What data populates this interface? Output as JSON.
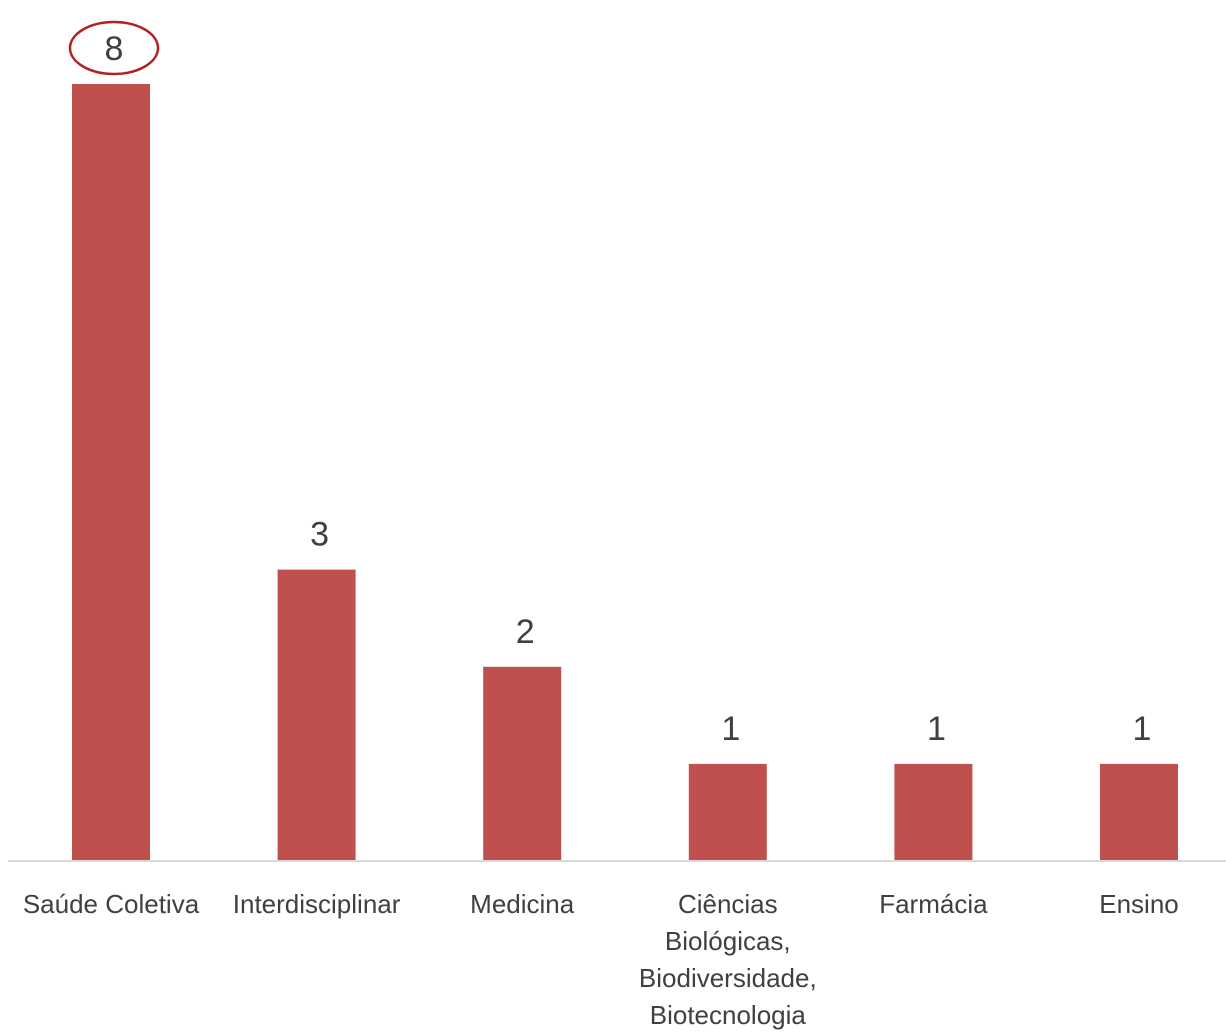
{
  "chart_data": {
    "type": "bar",
    "title": "",
    "xlabel": "",
    "ylabel": "",
    "categories": [
      "Saúde Coletiva",
      "Interdisciplinar",
      "Medicina",
      "Ciências Biológicas, Biodiversidade, Biotecnologia",
      "Farmácia",
      "Ensino"
    ],
    "category_lines": [
      [
        "Saúde Coletiva"
      ],
      [
        "Interdisciplinar"
      ],
      [
        "Medicina"
      ],
      [
        "Ciências",
        "Biológicas,",
        "Biodiversidade,",
        "Biotecnologia"
      ],
      [
        "Farmácia"
      ],
      [
        "Ensino"
      ]
    ],
    "values": [
      8,
      3,
      2,
      1,
      1,
      1
    ],
    "ylim": [
      0,
      8
    ],
    "grid": false,
    "legend": "none",
    "data_labels": true,
    "highlighted_index": 0,
    "colors": {
      "bar": "#c0504d",
      "highlight_ring": "#b22222",
      "axis": "#d9d9d9",
      "text": "#404040"
    }
  }
}
